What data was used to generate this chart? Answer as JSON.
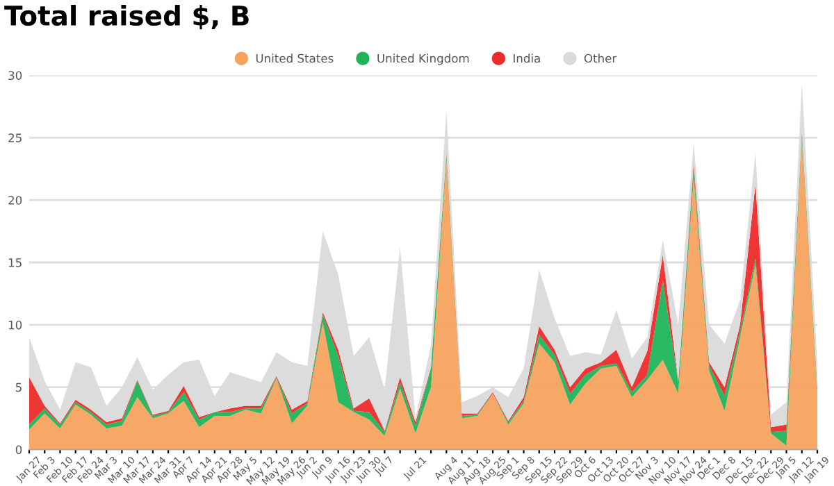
{
  "chart_data": {
    "type": "area",
    "stacked": true,
    "title": "Total raised $, B",
    "categories": [
      "Jan 27",
      "Feb 3",
      "Feb 10",
      "Feb 17",
      "Feb 24",
      "Mar 3",
      "Mar 10",
      "Mar 17",
      "Mar 24",
      "Mar 31",
      "Apr 7",
      "Apr 14",
      "Apr 21",
      "Apr 28",
      "May 5",
      "May 12",
      "May 19",
      "May 26",
      "Jun 2",
      "Jun 9",
      "Jun 16",
      "Jun 23",
      "Jun 30",
      "Jul 7",
      null,
      "Jul 21",
      null,
      "Aug 4",
      "Aug 11",
      "Aug 18",
      "Aug 25",
      "Sep 1",
      "Sep 8",
      "Sep 15",
      "Sep 22",
      "Sep 29",
      "Oct 6",
      "Oct 13",
      "Oct 20",
      "Oct 27",
      "Nov 3",
      "Nov 10",
      "Nov 17",
      "Nov 24",
      "Dec 1",
      "Dec 8",
      "Dec 15",
      "Dec 22",
      "Dec 29",
      "Jan 5",
      "Jan 12",
      "Jan 19"
    ],
    "series": [
      {
        "name": "United States",
        "color": "#f7a25e",
        "values": [
          1.6,
          2.9,
          1.7,
          3.6,
          2.8,
          1.7,
          1.9,
          4.2,
          2.5,
          2.9,
          3.9,
          1.8,
          2.7,
          2.7,
          3.2,
          2.9,
          5.7,
          2.1,
          3.5,
          10.2,
          3.8,
          3.0,
          2.4,
          1.1,
          4.9,
          1.3,
          5.0,
          23.2,
          2.5,
          2.7,
          4.5,
          2.0,
          3.7,
          8.5,
          7.0,
          3.6,
          5.3,
          6.5,
          6.7,
          4.2,
          5.6,
          7.2,
          4.5,
          21.8,
          6.3,
          3.1,
          9.0,
          14.8,
          1.3,
          0.3,
          25.0,
          4.5
        ]
      },
      {
        "name": "United Kingdom",
        "color": "#1fb45a",
        "values": [
          0.4,
          0.4,
          0.3,
          0.2,
          0.2,
          0.3,
          0.4,
          1.3,
          0.2,
          0.1,
          0.7,
          0.6,
          0.3,
          0.3,
          0.1,
          0.4,
          0.1,
          0.8,
          0.2,
          0.6,
          3.7,
          0.1,
          0.6,
          0.3,
          0.5,
          0.6,
          1.5,
          0.4,
          0.2,
          0.1,
          0.0,
          0.2,
          0.2,
          0.7,
          0.6,
          0.9,
          0.7,
          0.2,
          0.2,
          0.4,
          0.4,
          6.4,
          0.9,
          0.7,
          0.4,
          1.2,
          0.5,
          0.5,
          0.1,
          1.2,
          0.5,
          0.4
        ]
      },
      {
        "name": "India",
        "color": "#ee2b2b",
        "values": [
          3.8,
          0.2,
          0.1,
          0.2,
          0.2,
          0.2,
          0.2,
          0.1,
          0.1,
          0.1,
          0.5,
          0.2,
          0.0,
          0.3,
          0.2,
          0.2,
          0.1,
          0.3,
          0.2,
          0.2,
          0.5,
          0.2,
          1.1,
          0.1,
          0.4,
          0.3,
          0.1,
          0.2,
          0.2,
          0.1,
          0.1,
          0.1,
          0.3,
          0.7,
          0.4,
          0.5,
          0.5,
          0.3,
          1.1,
          0.4,
          1.9,
          2.0,
          0.1,
          0.5,
          0.3,
          0.7,
          0.5,
          6.0,
          0.4,
          0.5,
          0.1,
          0.1
        ]
      },
      {
        "name": "Other",
        "color": "#dadada",
        "values": [
          3.2,
          2.0,
          1.1,
          3.0,
          3.4,
          1.3,
          2.5,
          1.8,
          2.0,
          2.9,
          1.9,
          4.6,
          1.3,
          2.9,
          2.3,
          1.9,
          1.9,
          3.8,
          2.8,
          6.5,
          6.0,
          4.2,
          4.9,
          3.3,
          10.4,
          0.3,
          1.8,
          3.4,
          0.9,
          1.4,
          0.4,
          1.9,
          2.3,
          4.5,
          2.5,
          2.5,
          1.3,
          0.6,
          3.2,
          2.3,
          1.1,
          1.2,
          4.5,
          1.6,
          3.0,
          3.5,
          2.0,
          2.5,
          1.0,
          1.8,
          3.8,
          2.0
        ]
      }
    ],
    "ylim": [
      0,
      30
    ],
    "yticks": [
      0,
      5,
      10,
      15,
      20,
      25,
      30
    ],
    "grid": "y",
    "legend": "top"
  }
}
